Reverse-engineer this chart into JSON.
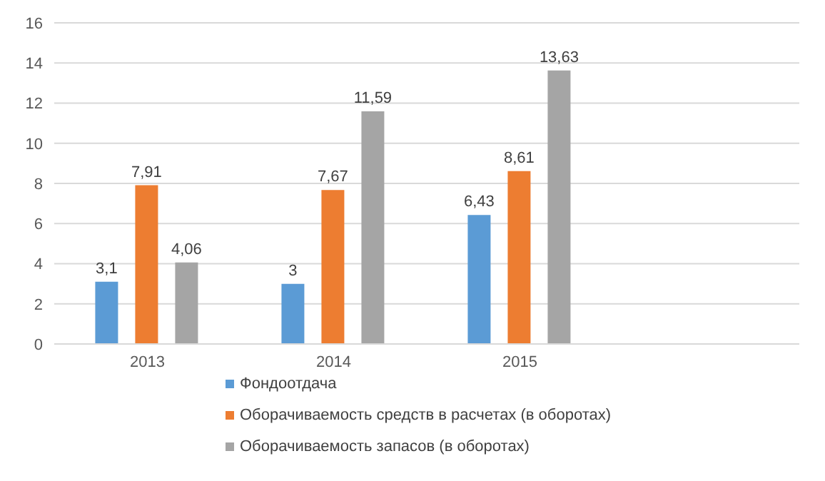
{
  "chart_data": {
    "type": "bar",
    "categories": [
      "2013",
      "2014",
      "2015",
      null
    ],
    "series": [
      {
        "name": "Фондоотдача",
        "color": "#5b9bd5",
        "values": [
          3.1,
          3,
          6.43,
          null
        ],
        "value_labels": [
          "3,1",
          "3",
          "6,43",
          null
        ]
      },
      {
        "name": "Оборачиваемость средств в расчетах (в оборотах)",
        "color": "#ed7d31",
        "values": [
          7.91,
          7.67,
          8.61,
          null
        ],
        "value_labels": [
          "7,91",
          "7,67",
          "8,61",
          null
        ]
      },
      {
        "name": "Оборачиваемость запасов (в оборотах)",
        "color": "#a5a5a5",
        "values": [
          4.06,
          11.59,
          13.63,
          null
        ],
        "value_labels": [
          "4,06",
          "11,59",
          "13,63",
          null
        ]
      }
    ],
    "ylim": [
      0,
      16
    ],
    "yticks": [
      0,
      2,
      4,
      6,
      8,
      10,
      12,
      14,
      16
    ],
    "grid": "y",
    "legend": "bottom"
  }
}
